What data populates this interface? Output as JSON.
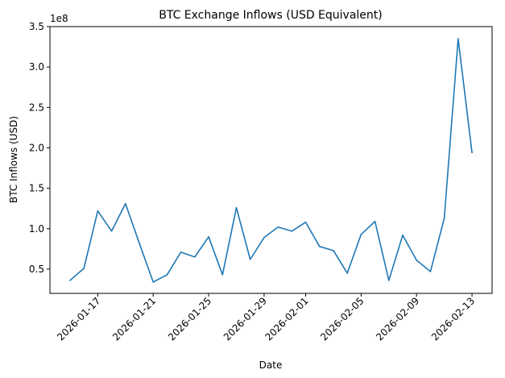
{
  "chart_data": {
    "type": "line",
    "title": "BTC Exchange Inflows (USD Equivalent)",
    "xlabel": "Date",
    "ylabel": "BTC Inflows (USD)",
    "y_offset_label": "1e8",
    "grid": false,
    "line_color": "#1f77b4",
    "x_ticks": [
      "2026-01-17",
      "2026-01-21",
      "2026-01-25",
      "2026-01-29",
      "2026-02-01",
      "2026-02-05",
      "2026-02-09",
      "2026-02-13"
    ],
    "y_ticks": [
      "0.5",
      "1.0",
      "1.5",
      "2.0",
      "2.5",
      "3.0",
      "3.5"
    ],
    "series": [
      {
        "x": [
          "2026-01-15",
          "2026-01-16",
          "2026-01-17",
          "2026-01-18",
          "2026-01-19",
          "2026-01-20",
          "2026-01-21",
          "2026-01-22",
          "2026-01-23",
          "2026-01-24",
          "2026-01-25",
          "2026-01-26",
          "2026-01-27",
          "2026-01-28",
          "2026-01-29",
          "2026-01-30",
          "2026-01-31",
          "2026-02-01",
          "2026-02-02",
          "2026-02-03",
          "2026-02-04",
          "2026-02-05",
          "2026-02-06",
          "2026-02-07",
          "2026-02-08",
          "2026-02-09",
          "2026-02-10",
          "2026-02-11",
          "2026-02-12",
          "2026-02-13"
        ],
        "y": [
          36000000,
          51000000,
          122000000,
          97000000,
          131000000,
          82000000,
          34000000,
          43000000,
          71000000,
          65000000,
          90000000,
          43000000,
          126000000,
          62000000,
          89000000,
          102000000,
          97000000,
          108000000,
          78000000,
          73000000,
          45000000,
          93000000,
          109000000,
          36000000,
          92000000,
          61000000,
          47000000,
          113000000,
          335000000,
          194000000
        ]
      }
    ],
    "ylim": [
      20000000,
      350000000
    ]
  }
}
